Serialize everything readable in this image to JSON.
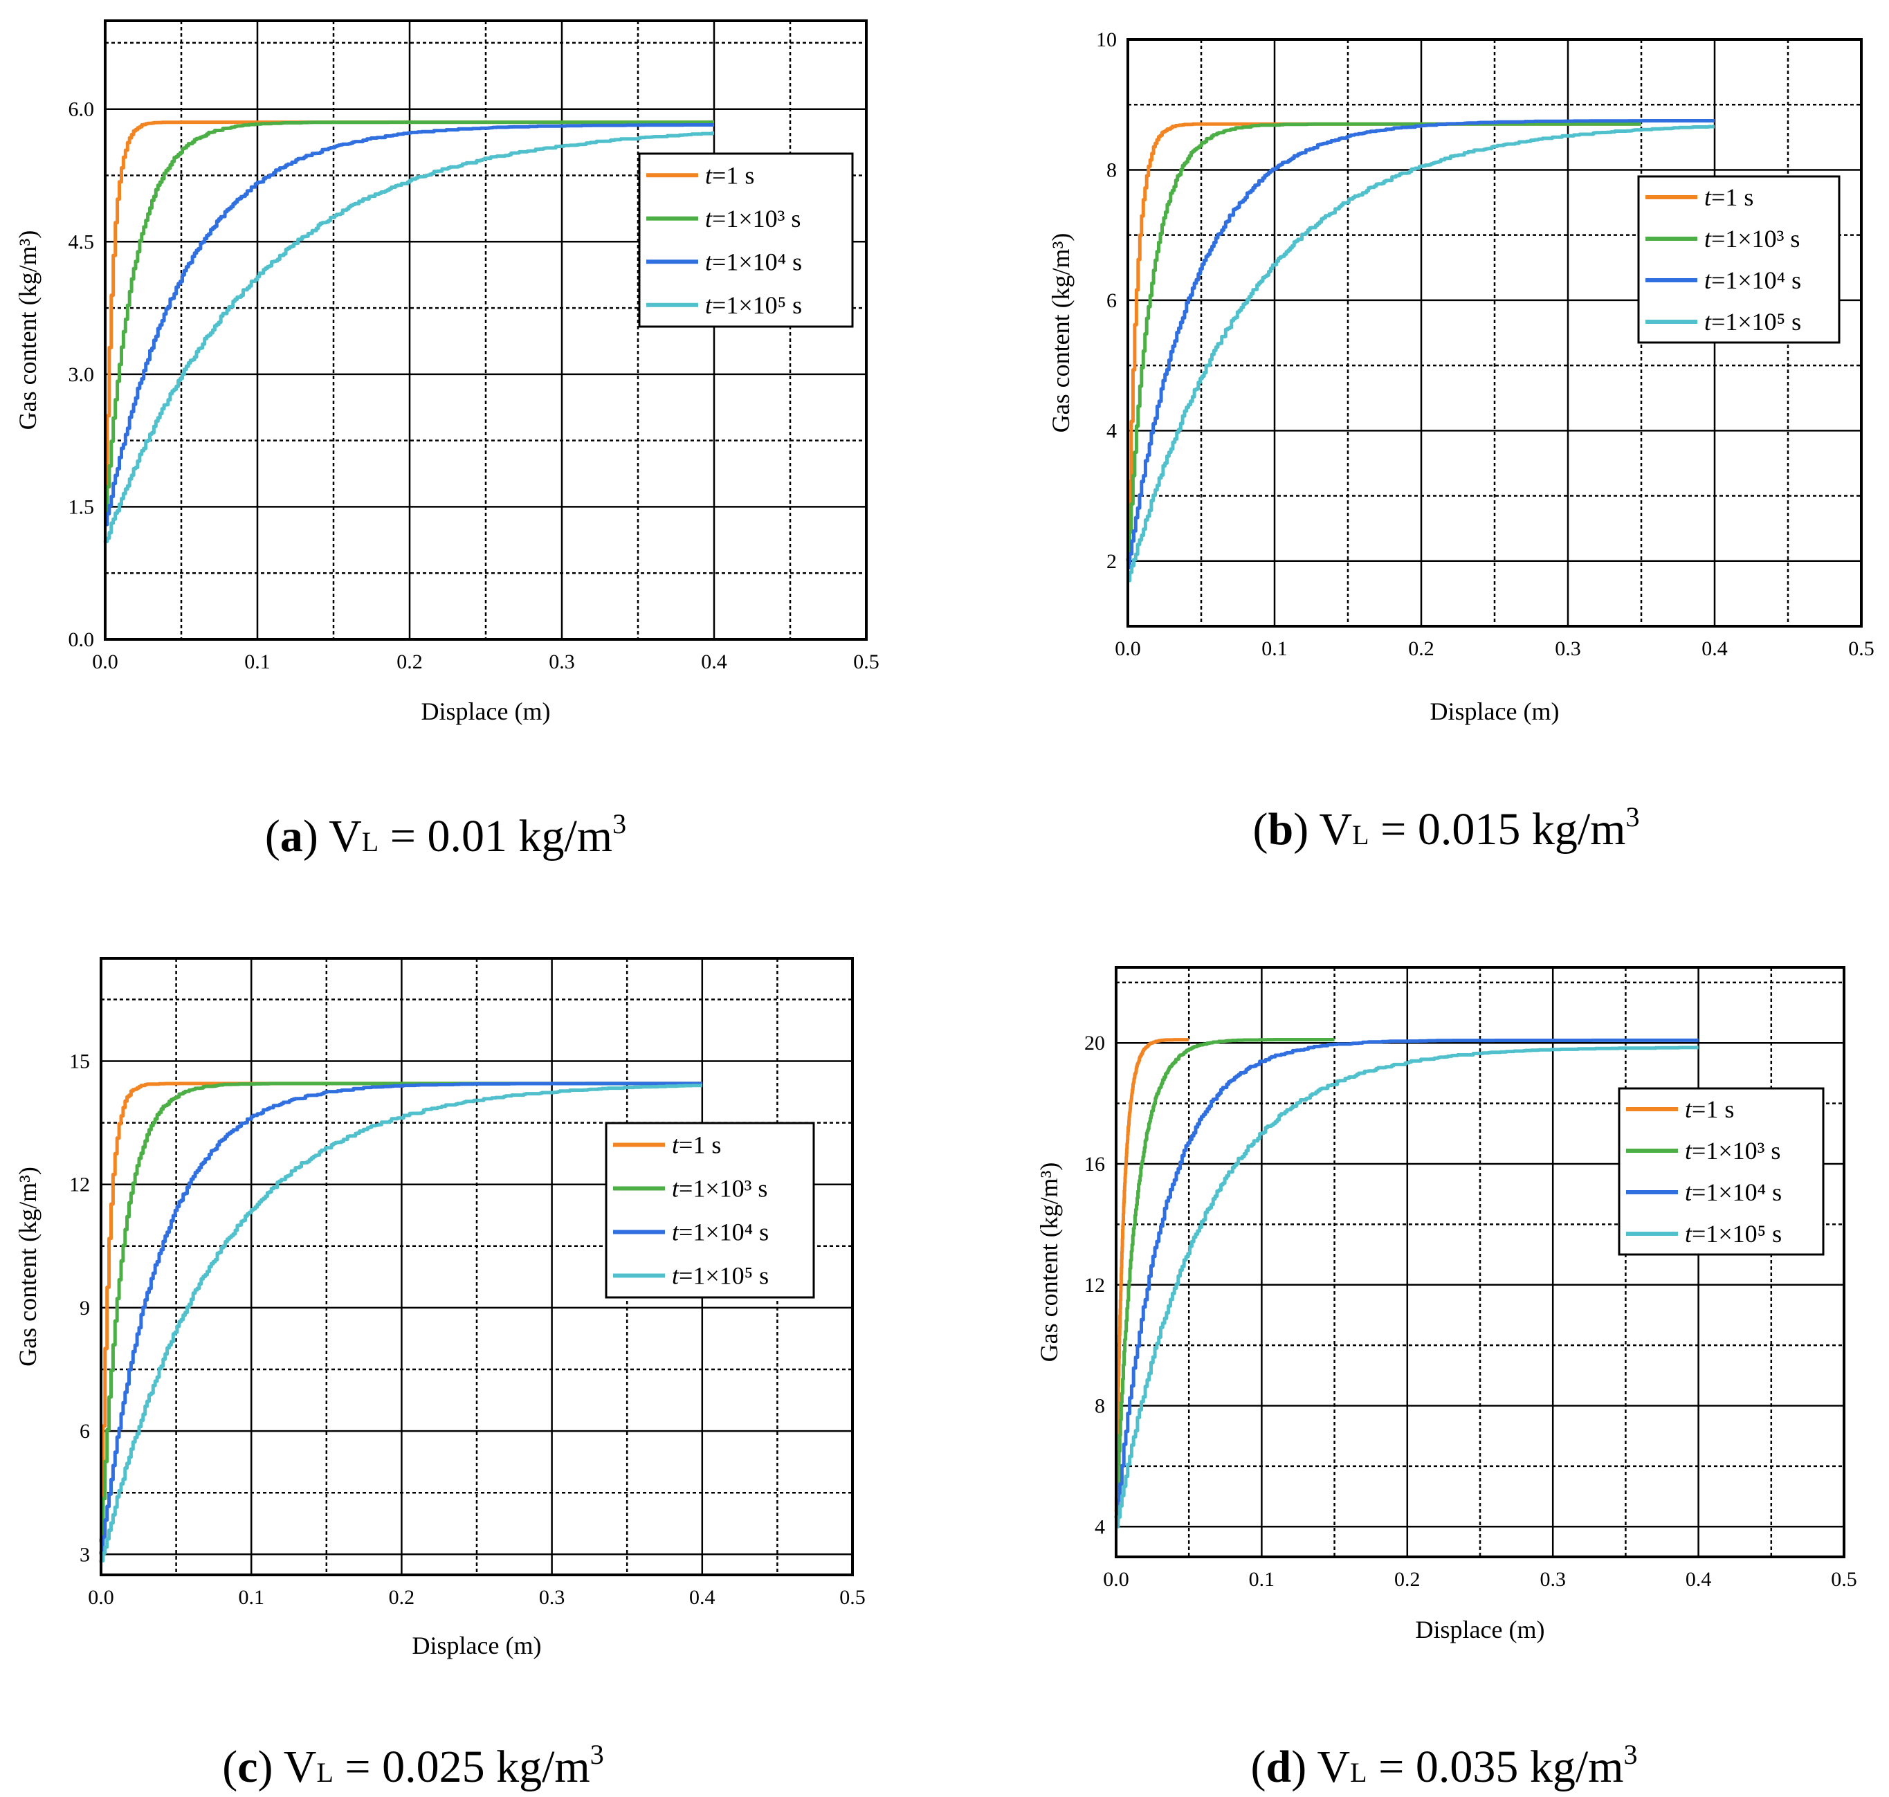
{
  "chart_data": [
    {
      "type": "line",
      "panel": "a",
      "caption": {
        "letter": "a",
        "text": "V",
        "sub": "L",
        "rest": " = 0.01 kg/m",
        "sup": "3"
      },
      "xlabel": "Displace (m)",
      "ylabel": "Gas content (kg/m³)",
      "xlim": [
        0,
        0.5
      ],
      "ylim": [
        0,
        7.0
      ],
      "xticks": [
        "0.0",
        "0.1",
        "0.2",
        "0.3",
        "0.4",
        "0.5"
      ],
      "yticks": [
        {
          "v": 0,
          "label": "0.0"
        },
        {
          "v": 1.5,
          "label": "1.5"
        },
        {
          "v": 3.0,
          "label": "3.0"
        },
        {
          "v": 4.5,
          "label": "4.5"
        },
        {
          "v": 6.0,
          "label": "6.0"
        }
      ],
      "grid": true,
      "legend": "upper-right",
      "series": [
        {
          "name": "t=1 s",
          "color": "#f28522",
          "x_end": 0.4,
          "y0": 1.5,
          "plateau": 5.85,
          "tau": 0.005
        },
        {
          "name": "t=1×10³ s",
          "color": "#4caf45",
          "x_end": 0.4,
          "y0": 1.4,
          "plateau": 5.85,
          "tau": 0.019
        },
        {
          "name": "t=1×10⁴ s",
          "color": "#2f6fe0",
          "x_end": 0.4,
          "y0": 1.3,
          "plateau": 5.82,
          "tau": 0.052
        },
        {
          "name": "t=1×10⁵ s",
          "color": "#4fc0cc",
          "x_end": 0.4,
          "y0": 1.1,
          "plateau": 5.8,
          "tau": 0.098
        }
      ]
    },
    {
      "type": "line",
      "panel": "b",
      "caption": {
        "letter": "b",
        "text": "V",
        "sub": "L",
        "rest": " = 0.015 kg/m",
        "sup": "3"
      },
      "xlabel": "Displace (m)",
      "ylabel": "Gas content (kg/m³)",
      "xlim": [
        0,
        0.5
      ],
      "ylim": [
        1.0,
        10
      ],
      "xticks": [
        "0.0",
        "0.1",
        "0.2",
        "0.3",
        "0.4",
        "0.5"
      ],
      "yticks": [
        {
          "v": 2,
          "label": "2"
        },
        {
          "v": 4,
          "label": "4"
        },
        {
          "v": 6,
          "label": "6"
        },
        {
          "v": 8,
          "label": "8"
        },
        {
          "v": 10,
          "label": "10"
        }
      ],
      "grid": true,
      "legend": "upper-right",
      "series": [
        {
          "name": "t=1 s",
          "color": "#f28522",
          "x_end": 0.35,
          "y0": 2.0,
          "plateau": 8.7,
          "tau": 0.006
        },
        {
          "name": "t=1×10³ s",
          "color": "#4caf45",
          "x_end": 0.35,
          "y0": 2.0,
          "plateau": 8.7,
          "tau": 0.016
        },
        {
          "name": "t=1×10⁴ s",
          "color": "#2f6fe0",
          "x_end": 0.4,
          "y0": 1.9,
          "plateau": 8.75,
          "tau": 0.045
        },
        {
          "name": "t=1×10⁵ s",
          "color": "#4fc0cc",
          "x_end": 0.4,
          "y0": 1.7,
          "plateau": 8.72,
          "tau": 0.085
        }
      ]
    },
    {
      "type": "line",
      "panel": "c",
      "caption": {
        "letter": "c",
        "text": "V",
        "sub": "L",
        "rest": " = 0.025 kg/m",
        "sup": "3"
      },
      "xlabel": "Displace (m)",
      "ylabel": "Gas content (kg/m³)",
      "xlim": [
        0,
        0.5
      ],
      "ylim": [
        2.5,
        17.5
      ],
      "xticks": [
        "0.0",
        "0.1",
        "0.2",
        "0.3",
        "0.4",
        "0.5"
      ],
      "yticks": [
        {
          "v": 3,
          "label": "3"
        },
        {
          "v": 6,
          "label": "6"
        },
        {
          "v": 9,
          "label": "9"
        },
        {
          "v": 12,
          "label": "12"
        },
        {
          "v": 15,
          "label": "15"
        }
      ],
      "grid": true,
      "legend": "center-right",
      "series": [
        {
          "name": "t=1 s",
          "color": "#f28522",
          "x_end": 0.4,
          "y0": 3.5,
          "plateau": 14.45,
          "tau": 0.005
        },
        {
          "name": "t=1×10³ s",
          "color": "#4caf45",
          "x_end": 0.4,
          "y0": 3.3,
          "plateau": 14.45,
          "tau": 0.014
        },
        {
          "name": "t=1×10⁴ s",
          "color": "#2f6fe0",
          "x_end": 0.4,
          "y0": 3.0,
          "plateau": 14.45,
          "tau": 0.038
        },
        {
          "name": "t=1×10⁵ s",
          "color": "#4fc0cc",
          "x_end": 0.4,
          "y0": 2.8,
          "plateau": 14.45,
          "tau": 0.075
        }
      ]
    },
    {
      "type": "line",
      "panel": "d",
      "caption": {
        "letter": "d",
        "text": "V",
        "sub": "L",
        "rest": " = 0.035 kg/m",
        "sup": "3"
      },
      "xlabel": "Displace (m)",
      "ylabel": "Gas content (kg/m³)",
      "xlim": [
        0,
        0.5
      ],
      "ylim": [
        3.0,
        22.5
      ],
      "xticks": [
        "0.0",
        "0.1",
        "0.2",
        "0.3",
        "0.4",
        "0.5"
      ],
      "yticks": [
        {
          "v": 4,
          "label": "4"
        },
        {
          "v": 8,
          "label": "8"
        },
        {
          "v": 12,
          "label": "12"
        },
        {
          "v": 16,
          "label": "16"
        },
        {
          "v": 20,
          "label": "20"
        }
      ],
      "grid": true,
      "legend": "upper-right",
      "series": [
        {
          "name": "t=1 s",
          "color": "#f28522",
          "x_end": 0.05,
          "y0": 4.5,
          "plateau": 20.1,
          "tau": 0.005
        },
        {
          "name": "t=1×10³ s",
          "color": "#4caf45",
          "x_end": 0.15,
          "y0": 4.3,
          "plateau": 20.1,
          "tau": 0.013
        },
        {
          "name": "t=1×10⁴ s",
          "color": "#2f6fe0",
          "x_end": 0.4,
          "y0": 4.2,
          "plateau": 20.08,
          "tau": 0.032
        },
        {
          "name": "t=1×10⁵ s",
          "color": "#4fc0cc",
          "x_end": 0.4,
          "y0": 4.0,
          "plateau": 19.85,
          "tau": 0.058
        }
      ]
    }
  ]
}
